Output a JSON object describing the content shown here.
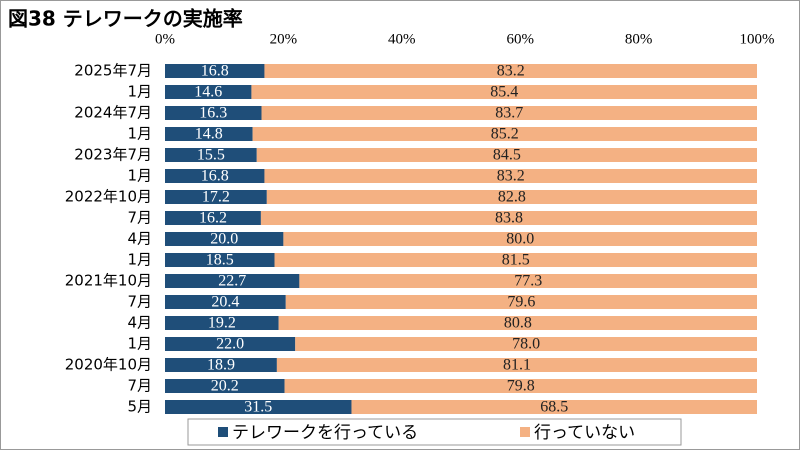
{
  "chart_data": {
    "type": "stacked-bar-horizontal",
    "title": "図38 テレワークの実施率",
    "categories": [
      "2025年7月",
      "1月",
      "2024年7月",
      "1月",
      "2023年7月",
      "1月",
      "2022年10月",
      "7月",
      "4月",
      "1月",
      "2021年10月",
      "7月",
      "4月",
      "1月",
      "2020年10月",
      "7月",
      "5月"
    ],
    "series": [
      {
        "name": "テレワークを行っている",
        "color": "#1f4e79",
        "values": [
          16.8,
          14.6,
          16.3,
          14.8,
          15.5,
          16.8,
          17.2,
          16.2,
          20.0,
          18.5,
          22.7,
          20.4,
          19.2,
          22.0,
          18.9,
          20.2,
          31.5
        ],
        "value_labels": [
          "16.8",
          "14.6",
          "16.3",
          "14.8",
          "15.5",
          "16.8",
          "17.2",
          "16.2",
          "20.0",
          "18.5",
          "22.7",
          "20.4",
          "19.2",
          "22.0",
          "18.9",
          "20.2",
          "31.5"
        ]
      },
      {
        "name": "行っていない",
        "color": "#f4b183",
        "values": [
          83.2,
          85.4,
          83.7,
          85.2,
          84.5,
          83.2,
          82.8,
          83.8,
          80.0,
          81.5,
          77.3,
          79.6,
          80.8,
          78.0,
          81.1,
          79.8,
          68.5
        ],
        "value_labels": [
          "83.2",
          "85.4",
          "83.7",
          "85.2",
          "84.5",
          "83.2",
          "82.8",
          "83.8",
          "80.0",
          "81.5",
          "77.3",
          "79.6",
          "80.8",
          "78.0",
          "81.1",
          "79.8",
          "68.5"
        ]
      }
    ],
    "xlim": [
      0,
      100
    ],
    "xticks": [
      {
        "value": 0,
        "label": "0%"
      },
      {
        "value": 20,
        "label": "20%"
      },
      {
        "value": 40,
        "label": "40%"
      },
      {
        "value": 60,
        "label": "60%"
      },
      {
        "value": 80,
        "label": "80%"
      },
      {
        "value": 100,
        "label": "100%"
      }
    ]
  }
}
